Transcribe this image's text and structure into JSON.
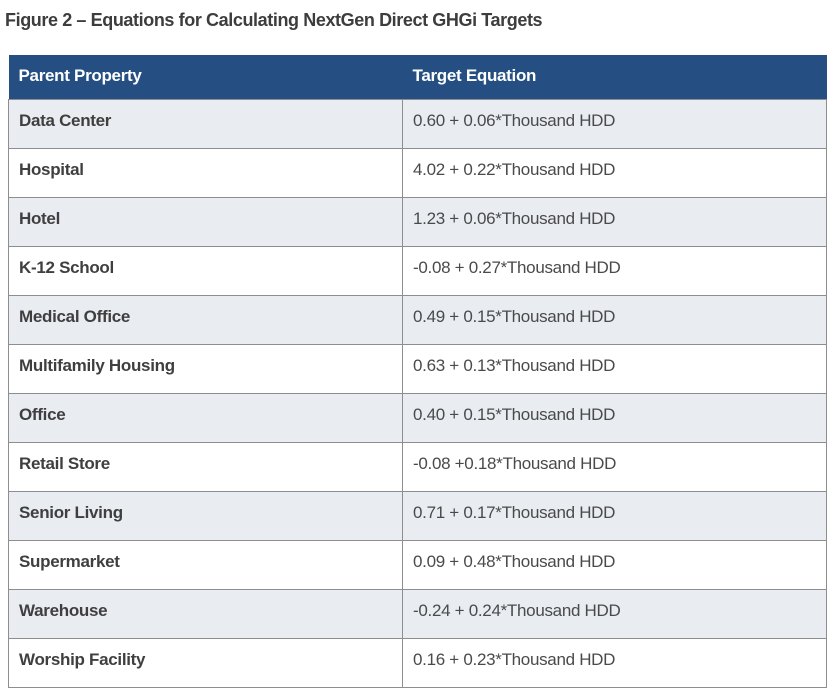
{
  "page": {
    "title": "Figure 2 – Equations for Calculating NextGen Direct GHGi Targets"
  },
  "table": {
    "columns": [
      "Parent Property",
      "Target Equation"
    ],
    "rows": [
      {
        "property": "Data Center",
        "equation": "0.60 + 0.06*Thousand HDD"
      },
      {
        "property": "Hospital",
        "equation": "4.02 + 0.22*Thousand HDD"
      },
      {
        "property": "Hotel",
        "equation": "1.23 + 0.06*Thousand HDD"
      },
      {
        "property": "K-12 School",
        "equation": "-0.08 + 0.27*Thousand HDD"
      },
      {
        "property": "Medical Office",
        "equation": "0.49 + 0.15*Thousand HDD"
      },
      {
        "property": "Multifamily Housing",
        "equation": "0.63 + 0.13*Thousand HDD"
      },
      {
        "property": "Office",
        "equation": "0.40 + 0.15*Thousand HDD"
      },
      {
        "property": "Retail Store",
        "equation": "-0.08 +0.18*Thousand HDD"
      },
      {
        "property": "Senior Living",
        "equation": "0.71 + 0.17*Thousand HDD"
      },
      {
        "property": "Supermarket",
        "equation": "0.09 + 0.48*Thousand HDD"
      },
      {
        "property": "Warehouse",
        "equation": "-0.24 + 0.24*Thousand HDD"
      },
      {
        "property": "Worship Facility",
        "equation": "0.16 + 0.23*Thousand HDD"
      }
    ]
  },
  "colors": {
    "header_bg": "#254f82",
    "header_text": "#ffffff",
    "alt_row_bg": "#e9ecf1",
    "row_bg": "#ffffff",
    "border": "#8e8e8e",
    "title_text": "#3d3d3d",
    "cell_text": "#3f3f3f"
  }
}
